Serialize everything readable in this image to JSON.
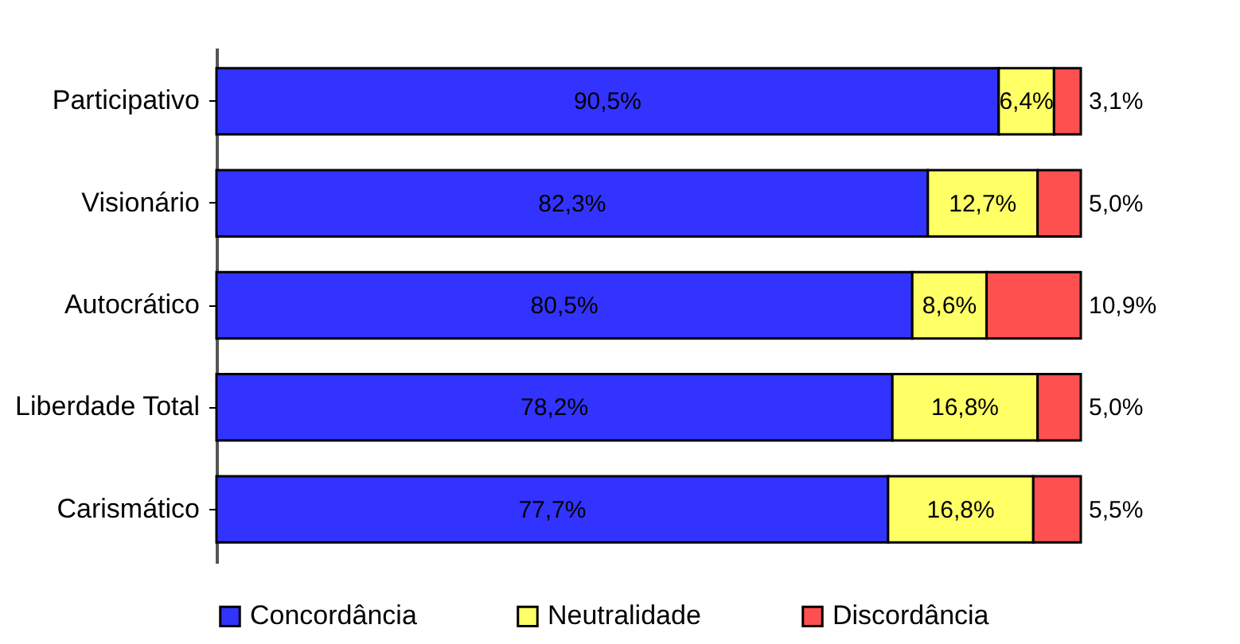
{
  "chart_data": {
    "type": "bar",
    "orientation": "horizontal",
    "stacked": true,
    "categories": [
      "Participativo",
      "Visionário",
      "Autocrático",
      "Liberdade Total",
      "Carismático"
    ],
    "xlim": [
      0,
      100
    ],
    "tick_labels": "y",
    "legend": "bottom",
    "series": [
      {
        "name": "Concordância",
        "color": "#3333ff",
        "values": [
          90.5,
          82.3,
          80.5,
          78.2,
          77.7
        ],
        "value_labels": [
          "90,5%",
          "82,3%",
          "80,5%",
          "78,2%",
          "77,7%"
        ]
      },
      {
        "name": "Neutralidade",
        "color": "#ffff66",
        "values": [
          6.4,
          12.7,
          8.6,
          16.8,
          16.8
        ],
        "value_labels": [
          "6,4%",
          "12,7%",
          "8,6%",
          "16,8%",
          "16,8%"
        ]
      },
      {
        "name": "Discordância",
        "color": "#ff5050",
        "values": [
          3.1,
          5.0,
          10.9,
          5.0,
          5.5
        ],
        "value_labels": [
          "3,1%",
          "5,0%",
          "10,9%",
          "5,0%",
          "5,5%"
        ]
      }
    ]
  }
}
